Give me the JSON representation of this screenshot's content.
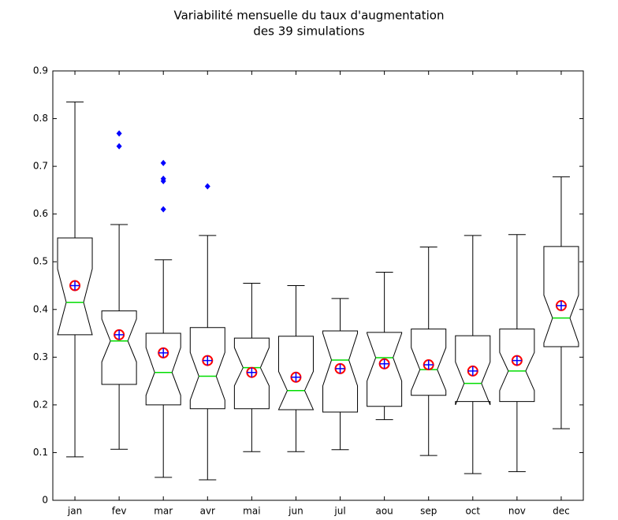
{
  "chart_data": {
    "type": "boxplot",
    "title": [
      "Variabilité mensuelle du taux d'augmentation",
      "des 39 simulations"
    ],
    "categories": [
      "jan",
      "fev",
      "mar",
      "avr",
      "mai",
      "jun",
      "jul",
      "aou",
      "sep",
      "oct",
      "nov",
      "dec"
    ],
    "whisker_low": [
      0.091,
      0.107,
      0.048,
      0.043,
      0.102,
      0.102,
      0.106,
      0.169,
      0.094,
      0.056,
      0.06,
      0.15
    ],
    "q1": [
      0.347,
      0.243,
      0.2,
      0.192,
      0.192,
      0.19,
      0.185,
      0.197,
      0.22,
      0.207,
      0.207,
      0.322
    ],
    "notch_low": [
      0.347,
      0.29,
      0.22,
      0.21,
      0.24,
      0.19,
      0.24,
      0.25,
      0.23,
      0.2,
      0.23,
      0.33
    ],
    "median": [
      0.415,
      0.334,
      0.268,
      0.26,
      0.278,
      0.23,
      0.294,
      0.299,
      0.274,
      0.245,
      0.271,
      0.382
    ],
    "notch_high": [
      0.485,
      0.38,
      0.32,
      0.31,
      0.32,
      0.27,
      0.35,
      0.35,
      0.32,
      0.29,
      0.31,
      0.43
    ],
    "q3": [
      0.55,
      0.397,
      0.35,
      0.362,
      0.34,
      0.344,
      0.355,
      0.352,
      0.359,
      0.345,
      0.359,
      0.532
    ],
    "whisker_high": [
      0.835,
      0.578,
      0.504,
      0.555,
      0.455,
      0.45,
      0.423,
      0.478,
      0.531,
      0.555,
      0.557,
      0.678
    ],
    "mean": [
      0.45,
      0.347,
      0.309,
      0.293,
      0.268,
      0.258,
      0.276,
      0.286,
      0.284,
      0.271,
      0.293,
      0.408
    ],
    "outliers": [
      [],
      [
        0.769,
        0.742
      ],
      [
        0.707,
        0.674,
        0.669,
        0.61
      ],
      [
        0.658
      ],
      [],
      [],
      [],
      [],
      [],
      [],
      [],
      []
    ],
    "ylim": [
      0,
      0.9
    ],
    "yticks": [
      0,
      0.1,
      0.2,
      0.3,
      0.4,
      0.5,
      0.6,
      0.7,
      0.8,
      0.9
    ],
    "box_color": "#000000",
    "median_color": "#00dd00",
    "mean_color": "#ff0000",
    "mean_cross_color": "#0000ff",
    "outlier_color": "#0000ff"
  }
}
